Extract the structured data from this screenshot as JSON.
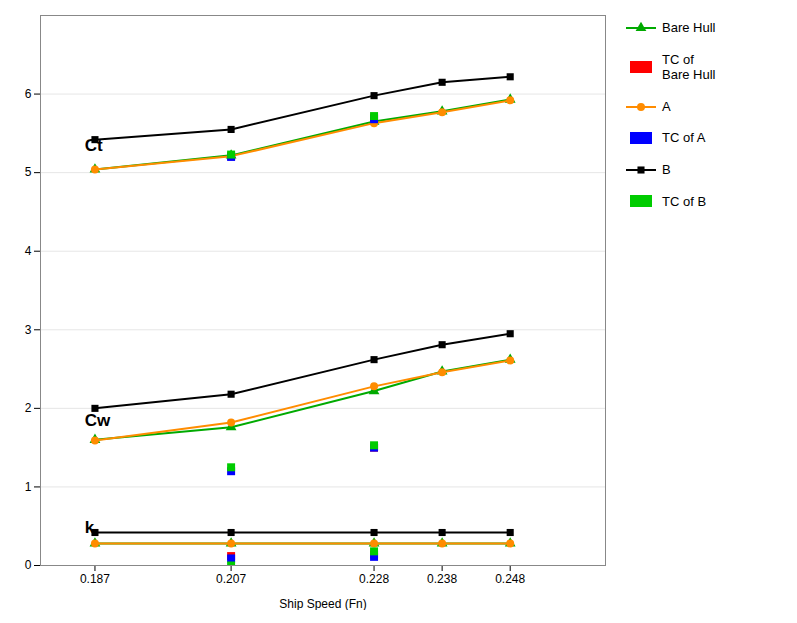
{
  "chart_data": {
    "type": "line",
    "x": [
      0.187,
      0.207,
      0.228,
      0.238,
      0.248
    ],
    "xlabel": "Ship Speed (Fn)",
    "xlim": [
      0.179,
      0.262
    ],
    "xticks": [
      0.187,
      0.207,
      0.228,
      0.238,
      0.248
    ],
    "ylim": [
      0,
      7
    ],
    "yticks": [
      0,
      1,
      2,
      3,
      4,
      5,
      6
    ],
    "grid": true,
    "legend": "right",
    "annotations": [
      {
        "text": "Ct",
        "x": 0.1855,
        "y": 5.35
      },
      {
        "text": "Cw",
        "x": 0.1855,
        "y": 1.85
      },
      {
        "text": "k",
        "x": 0.1855,
        "y": 0.48
      }
    ],
    "series": [
      {
        "name": "Bare Hull",
        "type": "line",
        "color": "#00aa00",
        "marker": "triangle",
        "values": [
          5.04,
          5.22,
          5.65,
          5.78,
          5.93
        ]
      },
      {
        "name": "Bare Hull",
        "type": "line",
        "color": "#00aa00",
        "marker": "triangle",
        "values": [
          1.6,
          1.76,
          2.22,
          2.47,
          2.62
        ]
      },
      {
        "name": "Bare Hull",
        "type": "line",
        "color": "#00aa00",
        "marker": "triangle",
        "values": [
          0.28,
          0.28,
          0.28,
          0.28,
          0.28
        ]
      },
      {
        "name": "TC of\nBare Hull",
        "type": "scatter",
        "color": "#ff0000",
        "marker": "square",
        "x": [
          0.207,
          0.228
        ],
        "values": [
          5.21,
          5.7
        ]
      },
      {
        "name": "TC of\nBare Hull",
        "type": "scatter",
        "color": "#ff0000",
        "marker": "square",
        "x": [
          0.228
        ],
        "values": [
          1.5
        ]
      },
      {
        "name": "TC of\nBare Hull",
        "type": "scatter",
        "color": "#ff0000",
        "marker": "square",
        "x": [
          0.207,
          0.228
        ],
        "values": [
          0.12,
          0.14
        ]
      },
      {
        "name": "A",
        "type": "line",
        "color": "#ff8c00",
        "marker": "circle",
        "values": [
          5.04,
          5.21,
          5.63,
          5.77,
          5.92
        ]
      },
      {
        "name": "A",
        "type": "line",
        "color": "#ff8c00",
        "marker": "circle",
        "values": [
          1.59,
          1.82,
          2.28,
          2.46,
          2.61
        ]
      },
      {
        "name": "A",
        "type": "line",
        "color": "#ff8c00",
        "marker": "circle",
        "values": [
          0.28,
          0.28,
          0.28,
          0.28,
          0.28
        ]
      },
      {
        "name": "TC of A",
        "type": "scatter",
        "color": "#0000ff",
        "marker": "square",
        "x": [
          0.207,
          0.228
        ],
        "values": [
          5.2,
          5.68
        ]
      },
      {
        "name": "TC of A",
        "type": "scatter",
        "color": "#0000ff",
        "marker": "square",
        "x": [
          0.207,
          0.228
        ],
        "values": [
          1.2,
          1.5
        ]
      },
      {
        "name": "TC of A",
        "type": "scatter",
        "color": "#0000ff",
        "marker": "square",
        "x": [
          0.207,
          0.228
        ],
        "values": [
          0.09,
          0.11
        ]
      },
      {
        "name": "B",
        "type": "line",
        "color": "#000000",
        "marker": "square",
        "values": [
          5.42,
          5.55,
          5.98,
          6.15,
          6.22
        ]
      },
      {
        "name": "B",
        "type": "line",
        "color": "#000000",
        "marker": "square",
        "values": [
          2.0,
          2.18,
          2.62,
          2.81,
          2.95
        ]
      },
      {
        "name": "B",
        "type": "line",
        "color": "#000000",
        "marker": "square",
        "values": [
          0.42,
          0.42,
          0.42,
          0.42,
          0.42
        ]
      },
      {
        "name": "TC of B",
        "type": "scatter",
        "color": "#00cc00",
        "marker": "square",
        "x": [
          0.207,
          0.228
        ],
        "values": [
          5.23,
          5.72
        ]
      },
      {
        "name": "TC of B",
        "type": "scatter",
        "color": "#00cc00",
        "marker": "square",
        "x": [
          0.207,
          0.228
        ],
        "values": [
          1.25,
          1.53
        ]
      },
      {
        "name": "TC of B",
        "type": "scatter",
        "color": "#00cc00",
        "marker": "square",
        "x": [
          0.207,
          0.228
        ],
        "values": [
          0.0,
          0.18
        ]
      }
    ]
  }
}
